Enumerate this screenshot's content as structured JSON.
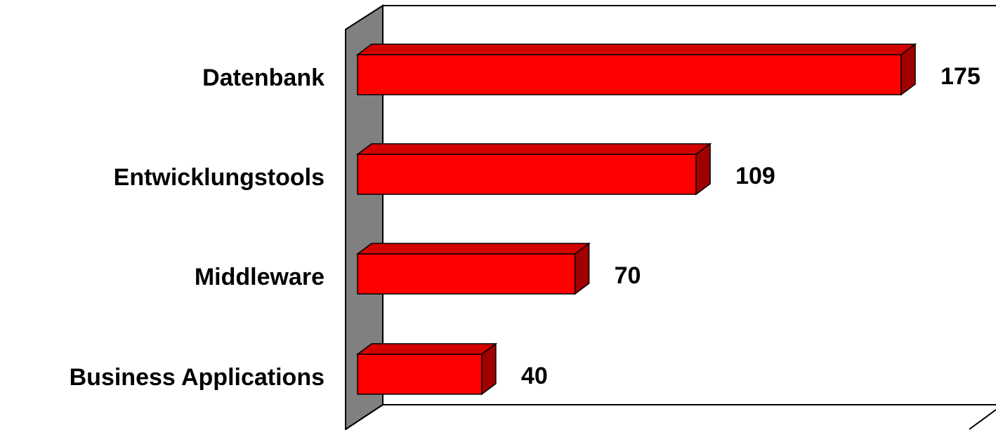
{
  "chart_data": {
    "type": "bar",
    "orientation": "horizontal",
    "three_d": true,
    "categories": [
      "Datenbank",
      "Entwicklungstools",
      "Middleware",
      "Business Applications"
    ],
    "values": [
      175,
      109,
      70,
      40
    ],
    "value_labels": [
      "175",
      "109",
      "70",
      "40"
    ],
    "xlim": [
      0,
      175
    ],
    "grid": false,
    "legend": "none",
    "title": "",
    "xlabel": "",
    "ylabel": ""
  },
  "colors": {
    "bar_front": "#ff0000",
    "bar_top": "#d40000",
    "bar_side": "#a00000",
    "wall": "#808080",
    "outline": "#000000"
  }
}
